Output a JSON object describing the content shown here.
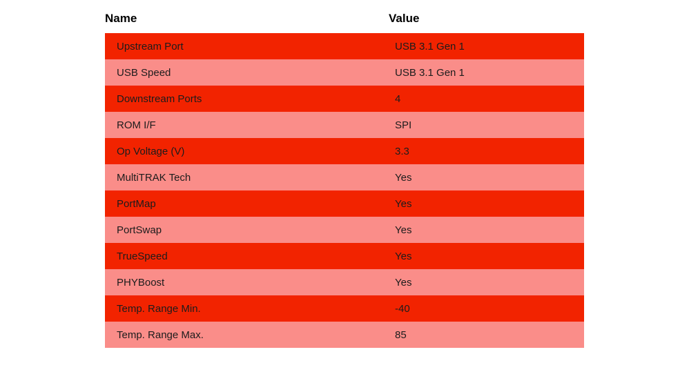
{
  "chart_data": {
    "type": "table",
    "columns": [
      "Name",
      "Value"
    ],
    "rows": [
      {
        "name": "Upstream Port",
        "value": "USB 3.1 Gen 1"
      },
      {
        "name": "USB Speed",
        "value": "USB 3.1 Gen 1"
      },
      {
        "name": "Downstream Ports",
        "value": "4"
      },
      {
        "name": "ROM I/F",
        "value": "SPI"
      },
      {
        "name": "Op Voltage (V)",
        "value": "3.3"
      },
      {
        "name": "MultiTRAK Tech",
        "value": "Yes"
      },
      {
        "name": "PortMap",
        "value": "Yes"
      },
      {
        "name": "PortSwap",
        "value": "Yes"
      },
      {
        "name": "TrueSpeed",
        "value": "Yes"
      },
      {
        "name": "PHYBoost",
        "value": "Yes"
      },
      {
        "name": "Temp. Range Min.",
        "value": "-40"
      },
      {
        "name": "Temp. Range Max.",
        "value": "85"
      }
    ]
  },
  "style": {
    "page_background": "#ffffff",
    "row_odd_color": "#f22300",
    "row_even_color": "#fa8d89",
    "row_text_color": "#1c1c1c",
    "header_text_color": "#000000"
  }
}
